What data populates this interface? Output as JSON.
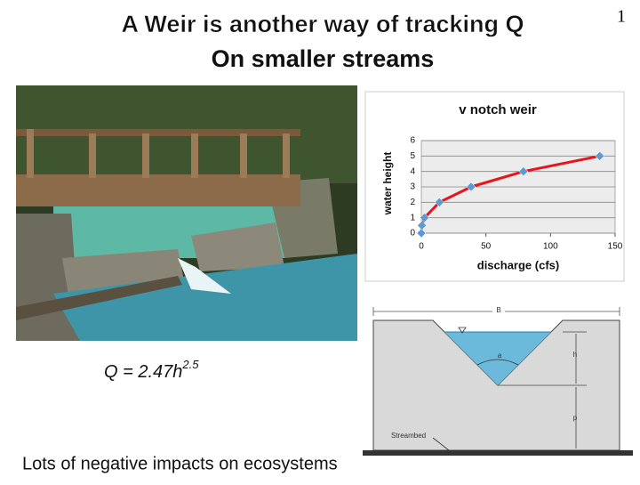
{
  "slide": {
    "title_lines": [
      "A Weir is another way of tracking Q",
      "On smaller streams"
    ],
    "page_number": "1",
    "formula": {
      "base": "Q = 2.47h",
      "exponent": "2.5"
    },
    "footer": "Lots of negative impacts on ecosystems"
  },
  "diagram": {
    "width_label": "B",
    "angle_label": "a",
    "head_label": "h",
    "crest_label": "p",
    "bed_label": "Streambed"
  },
  "chart_data": {
    "type": "line",
    "title": "v notch weir",
    "x_label": "discharge (cfs)",
    "y_label": "water height",
    "x": [
      0,
      0.44,
      2.47,
      13.97,
      38.5,
      79.04,
      138.1
    ],
    "series": [
      {
        "name": "water height",
        "color": "#e8141b",
        "marker_color": "#5b9bd5",
        "values": [
          0,
          0.5,
          1,
          2,
          3,
          4,
          5
        ]
      }
    ],
    "xlim": [
      0,
      150
    ],
    "xticks": [
      0,
      50,
      100,
      150
    ],
    "ylim": [
      0,
      6
    ],
    "yticks": [
      0,
      1,
      2,
      3,
      4,
      5,
      6
    ],
    "grid": true
  }
}
